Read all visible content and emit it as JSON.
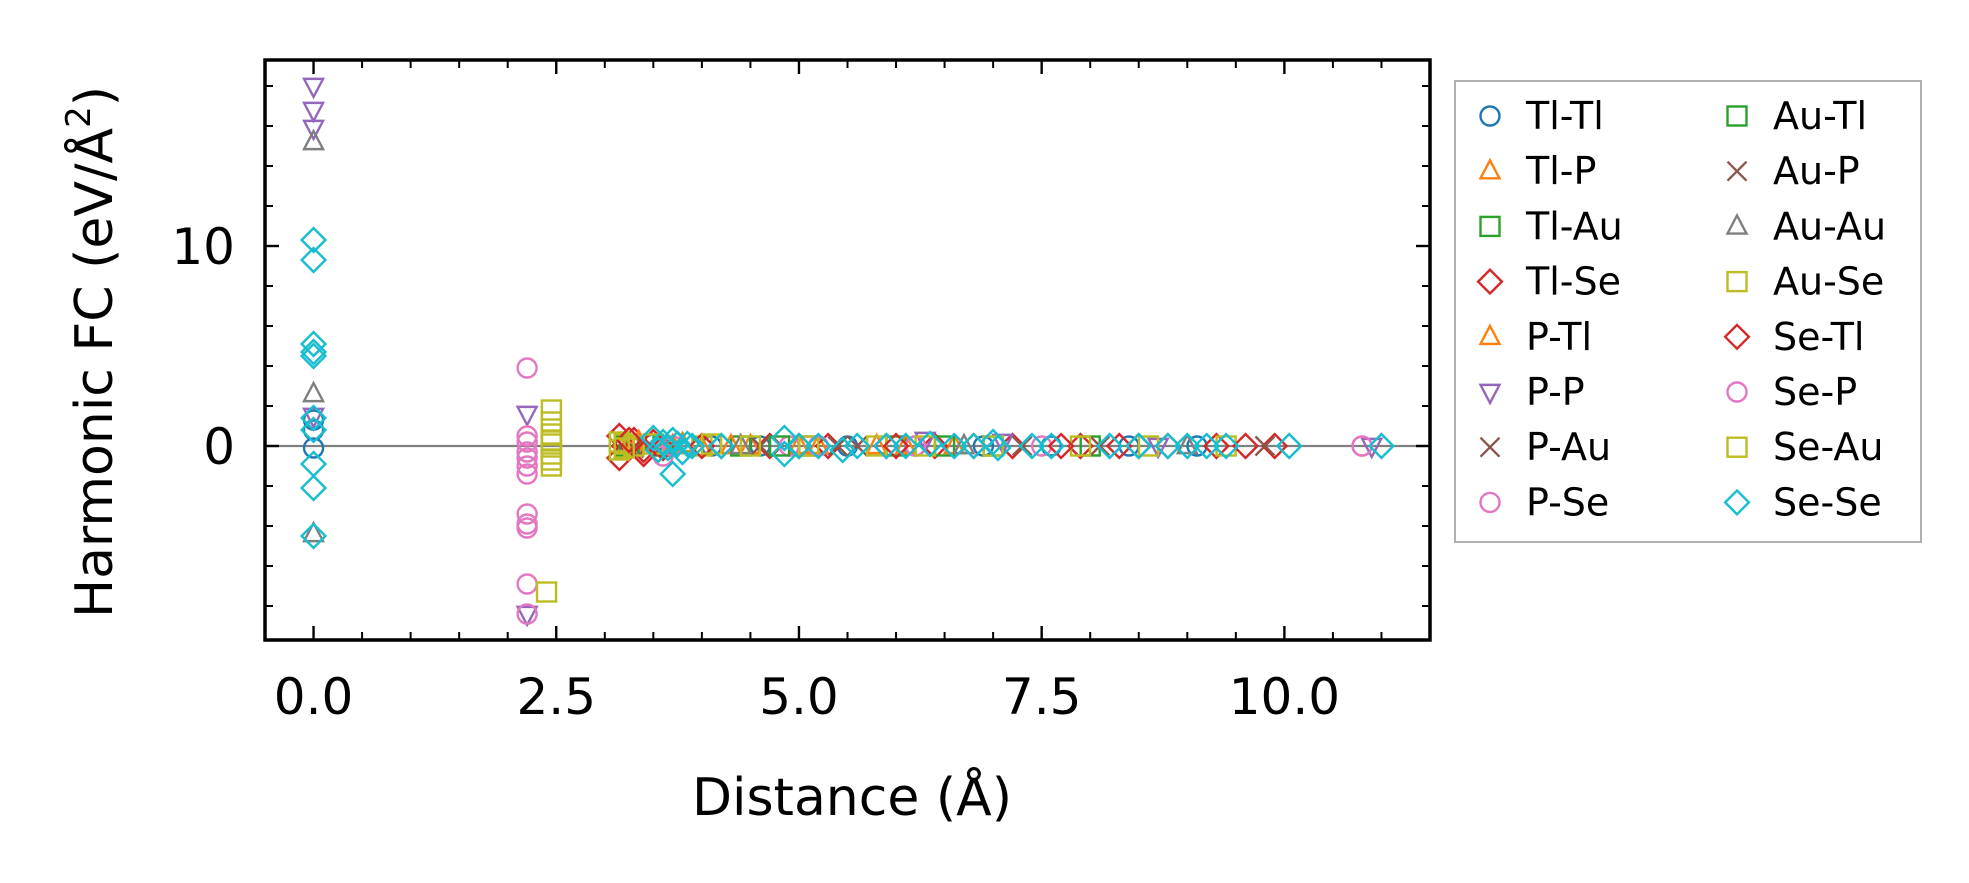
{
  "chart_data": {
    "type": "scatter",
    "xlabel": "Distance (Å)",
    "ylabel_main": "Harmonic FC (eV/Å",
    "ylabel_sup": "2",
    "ylabel_close": ")",
    "xlim": [
      -0.5,
      11.5
    ],
    "ylim": [
      -9.7,
      19.3
    ],
    "xticks": [
      0.0,
      2.5,
      5.0,
      7.5,
      10.0
    ],
    "xtick_labels": [
      "0.0",
      "2.5",
      "5.0",
      "7.5",
      "10.0"
    ],
    "yticks": [
      0,
      10
    ],
    "ytick_labels": [
      "0",
      "10"
    ],
    "hline_y": 0,
    "legend_position": "outside-right",
    "series": [
      {
        "name": "Tl-Tl",
        "marker": "circle",
        "color": "#1f77b4",
        "points": [
          [
            0,
            1.3
          ],
          [
            0,
            0.8
          ],
          [
            0,
            -0.1
          ],
          [
            3.5,
            0.1
          ],
          [
            4.1,
            0
          ],
          [
            4.6,
            0
          ],
          [
            5.5,
            0
          ],
          [
            6.2,
            0
          ],
          [
            6.9,
            0
          ],
          [
            7.6,
            0
          ],
          [
            8.4,
            0
          ],
          [
            9.1,
            0
          ]
        ]
      },
      {
        "name": "Tl-P",
        "marker": "triangle-up",
        "color": "#ff7f0e",
        "points": [
          [
            3.3,
            0.1
          ],
          [
            3.7,
            0
          ],
          [
            4.0,
            -0.1
          ],
          [
            4.5,
            0
          ],
          [
            5.2,
            0
          ],
          [
            5.8,
            0
          ],
          [
            6.6,
            0
          ]
        ]
      },
      {
        "name": "Tl-Au",
        "marker": "square",
        "color": "#2ca02c",
        "points": [
          [
            3.2,
            0
          ],
          [
            3.6,
            0
          ],
          [
            4.4,
            0
          ],
          [
            5.1,
            0
          ],
          [
            6.0,
            0
          ],
          [
            7.0,
            0
          ],
          [
            8.0,
            0
          ]
        ]
      },
      {
        "name": "Tl-Se",
        "marker": "diamond",
        "color": "#d62728",
        "points": [
          [
            3.15,
            0.5
          ],
          [
            3.15,
            -0.6
          ],
          [
            3.2,
            0
          ],
          [
            3.3,
            0.3
          ],
          [
            3.4,
            -0.2
          ],
          [
            3.5,
            0.2
          ],
          [
            3.6,
            -0.1
          ],
          [
            4.2,
            0
          ],
          [
            4.7,
            0
          ],
          [
            5.3,
            0
          ],
          [
            5.9,
            0
          ],
          [
            6.4,
            0
          ],
          [
            6.8,
            0
          ],
          [
            7.2,
            0
          ],
          [
            7.9,
            0
          ],
          [
            8.3,
            0
          ],
          [
            8.8,
            0
          ],
          [
            9.3,
            0
          ],
          [
            9.9,
            0
          ]
        ]
      },
      {
        "name": "P-Tl",
        "marker": "triangle-up",
        "color": "#ff7f0e",
        "points": [
          [
            3.35,
            0.2
          ],
          [
            3.8,
            0.1
          ],
          [
            4.3,
            0
          ],
          [
            5.0,
            0
          ],
          [
            6.1,
            0
          ]
        ]
      },
      {
        "name": "P-P",
        "marker": "triangle-down",
        "color": "#9467bd",
        "points": [
          [
            0,
            18
          ],
          [
            0,
            16.8
          ],
          [
            0,
            15.9
          ],
          [
            0,
            1.5
          ],
          [
            2.2,
            1.6
          ],
          [
            2.2,
            -8.4
          ],
          [
            6.3,
            0.3
          ],
          [
            7.1,
            0.2
          ],
          [
            8.7,
            0
          ],
          [
            10.9,
            0
          ]
        ]
      },
      {
        "name": "P-Au",
        "marker": "x",
        "color": "#8c564b",
        "points": [
          [
            3.3,
            -0.1
          ],
          [
            4.6,
            0
          ],
          [
            5.6,
            0
          ],
          [
            7.3,
            0
          ],
          [
            9.8,
            0
          ]
        ]
      },
      {
        "name": "P-Se",
        "marker": "circle",
        "color": "#e377c2",
        "points": [
          [
            2.2,
            3.9
          ],
          [
            2.2,
            0.2
          ],
          [
            2.2,
            -0.3
          ],
          [
            2.2,
            -1.0
          ],
          [
            2.2,
            -1.4
          ],
          [
            2.2,
            -3.4
          ],
          [
            2.2,
            -3.9
          ],
          [
            2.2,
            -4.1
          ],
          [
            2.2,
            -6.9
          ],
          [
            2.2,
            -8.4
          ],
          [
            3.6,
            -0.5
          ],
          [
            4.9,
            0
          ],
          [
            6.2,
            0
          ],
          [
            7.5,
            0
          ],
          [
            10.8,
            0
          ]
        ]
      },
      {
        "name": "Au-Tl",
        "marker": "square",
        "color": "#2ca02c",
        "points": [
          [
            3.25,
            0
          ],
          [
            4.8,
            0
          ],
          [
            6.5,
            0
          ]
        ]
      },
      {
        "name": "Au-P",
        "marker": "x",
        "color": "#8c564b",
        "points": [
          [
            3.45,
            0
          ],
          [
            5.4,
            0
          ],
          [
            8.1,
            0
          ]
        ]
      },
      {
        "name": "Au-Au",
        "marker": "triangle-up",
        "color": "#7f7f7f",
        "points": [
          [
            0,
            15.2
          ],
          [
            0,
            2.6
          ],
          [
            0,
            -4.4
          ],
          [
            4.4,
            0
          ],
          [
            6.7,
            0
          ],
          [
            9.0,
            0
          ]
        ]
      },
      {
        "name": "Au-Se",
        "marker": "square",
        "color": "#bcbd22",
        "points": [
          [
            2.45,
            1.8
          ],
          [
            2.45,
            1.2
          ],
          [
            2.45,
            0.6
          ],
          [
            2.45,
            0.1
          ],
          [
            2.45,
            -0.4
          ],
          [
            2.45,
            -1.0
          ],
          [
            2.4,
            -7.3
          ],
          [
            3.15,
            0.2
          ],
          [
            3.15,
            -0.2
          ],
          [
            3.2,
            0.1
          ],
          [
            3.3,
            0
          ],
          [
            3.5,
            0.1
          ],
          [
            4.0,
            0
          ],
          [
            4.5,
            0
          ],
          [
            5.1,
            0
          ],
          [
            5.8,
            0
          ],
          [
            7.0,
            0
          ],
          [
            7.9,
            0
          ],
          [
            9.4,
            0
          ]
        ]
      },
      {
        "name": "Se-Tl",
        "marker": "diamond",
        "color": "#d62728",
        "points": [
          [
            3.25,
            0.3
          ],
          [
            3.4,
            -0.4
          ],
          [
            4.0,
            0
          ],
          [
            5.0,
            0
          ],
          [
            6.0,
            0
          ],
          [
            7.7,
            0
          ],
          [
            8.5,
            0
          ],
          [
            9.6,
            0
          ]
        ]
      },
      {
        "name": "Se-P",
        "marker": "circle",
        "color": "#e377c2",
        "points": [
          [
            2.2,
            0.5
          ],
          [
            2.2,
            -0.6
          ],
          [
            3.7,
            0
          ],
          [
            5.2,
            0
          ],
          [
            10.8,
            0
          ]
        ]
      },
      {
        "name": "Se-Au",
        "marker": "square",
        "color": "#bcbd22",
        "points": [
          [
            2.45,
            0.3
          ],
          [
            2.45,
            -0.7
          ],
          [
            3.2,
            -0.1
          ],
          [
            4.1,
            0.1
          ],
          [
            6.3,
            0
          ],
          [
            8.6,
            0
          ]
        ]
      },
      {
        "name": "Se-Se",
        "marker": "diamond",
        "color": "#17becf",
        "points": [
          [
            0,
            10.3
          ],
          [
            0,
            9.3
          ],
          [
            0,
            5.1
          ],
          [
            0,
            4.7
          ],
          [
            0,
            4.5
          ],
          [
            0,
            1.4
          ],
          [
            0,
            0.8
          ],
          [
            0,
            -0.9
          ],
          [
            0,
            -2.1
          ],
          [
            0,
            -4.5
          ],
          [
            3.5,
            0.4
          ],
          [
            3.55,
            -0.2
          ],
          [
            3.6,
            0.2
          ],
          [
            3.65,
            -0.1
          ],
          [
            3.7,
            0.3
          ],
          [
            3.7,
            -1.4
          ],
          [
            3.75,
            0.1
          ],
          [
            3.8,
            -0.3
          ],
          [
            3.85,
            0.1
          ],
          [
            3.9,
            0
          ],
          [
            4.2,
            0
          ],
          [
            4.85,
            0.4
          ],
          [
            4.85,
            -0.4
          ],
          [
            5.0,
            0
          ],
          [
            5.2,
            0
          ],
          [
            5.45,
            -0.2
          ],
          [
            5.6,
            0
          ],
          [
            5.9,
            0
          ],
          [
            6.1,
            0
          ],
          [
            6.35,
            0.1
          ],
          [
            6.6,
            0
          ],
          [
            6.8,
            0
          ],
          [
            7.0,
            0.2
          ],
          [
            7.05,
            -0.1
          ],
          [
            7.4,
            0
          ],
          [
            7.6,
            0
          ],
          [
            8.2,
            0
          ],
          [
            8.5,
            0
          ],
          [
            8.8,
            0
          ],
          [
            9.0,
            0
          ],
          [
            9.2,
            0
          ],
          [
            9.4,
            0
          ],
          [
            10.05,
            0
          ],
          [
            11.0,
            0
          ]
        ]
      }
    ]
  }
}
